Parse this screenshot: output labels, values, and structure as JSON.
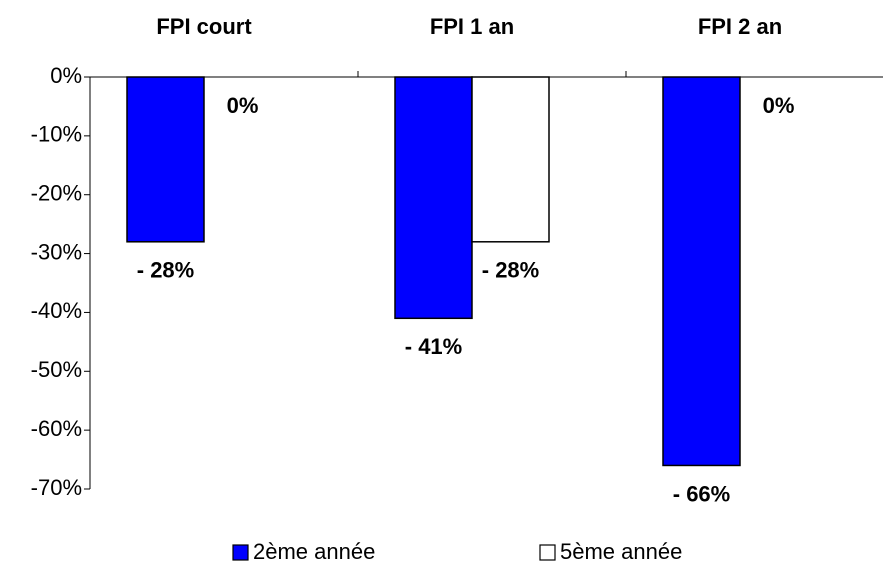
{
  "chart_data": {
    "type": "bar",
    "categories": [
      "FPI court",
      "FPI 1 an",
      "FPI 2 an"
    ],
    "series": [
      {
        "name": "2ème année",
        "color": "#0000ff",
        "values": [
          -28,
          -41,
          -66
        ],
        "value_labels": [
          "- 28%",
          "- 41%",
          "- 66%"
        ]
      },
      {
        "name": "5ème année",
        "color": "#ffffff",
        "values": [
          0,
          -28,
          0
        ],
        "value_labels": [
          "0%",
          "- 28%",
          "0%"
        ]
      }
    ],
    "ylim": [
      -70,
      0
    ],
    "yticks": [
      {
        "value": 0,
        "label": "0%"
      },
      {
        "value": -10,
        "label": "-10%"
      },
      {
        "value": -20,
        "label": "-20%"
      },
      {
        "value": -30,
        "label": "-30%"
      },
      {
        "value": -40,
        "label": "-40%"
      },
      {
        "value": -50,
        "label": "-50%"
      },
      {
        "value": -60,
        "label": "-60%"
      },
      {
        "value": -70,
        "label": "-70%"
      }
    ],
    "grid": false,
    "legend": "bottom"
  }
}
